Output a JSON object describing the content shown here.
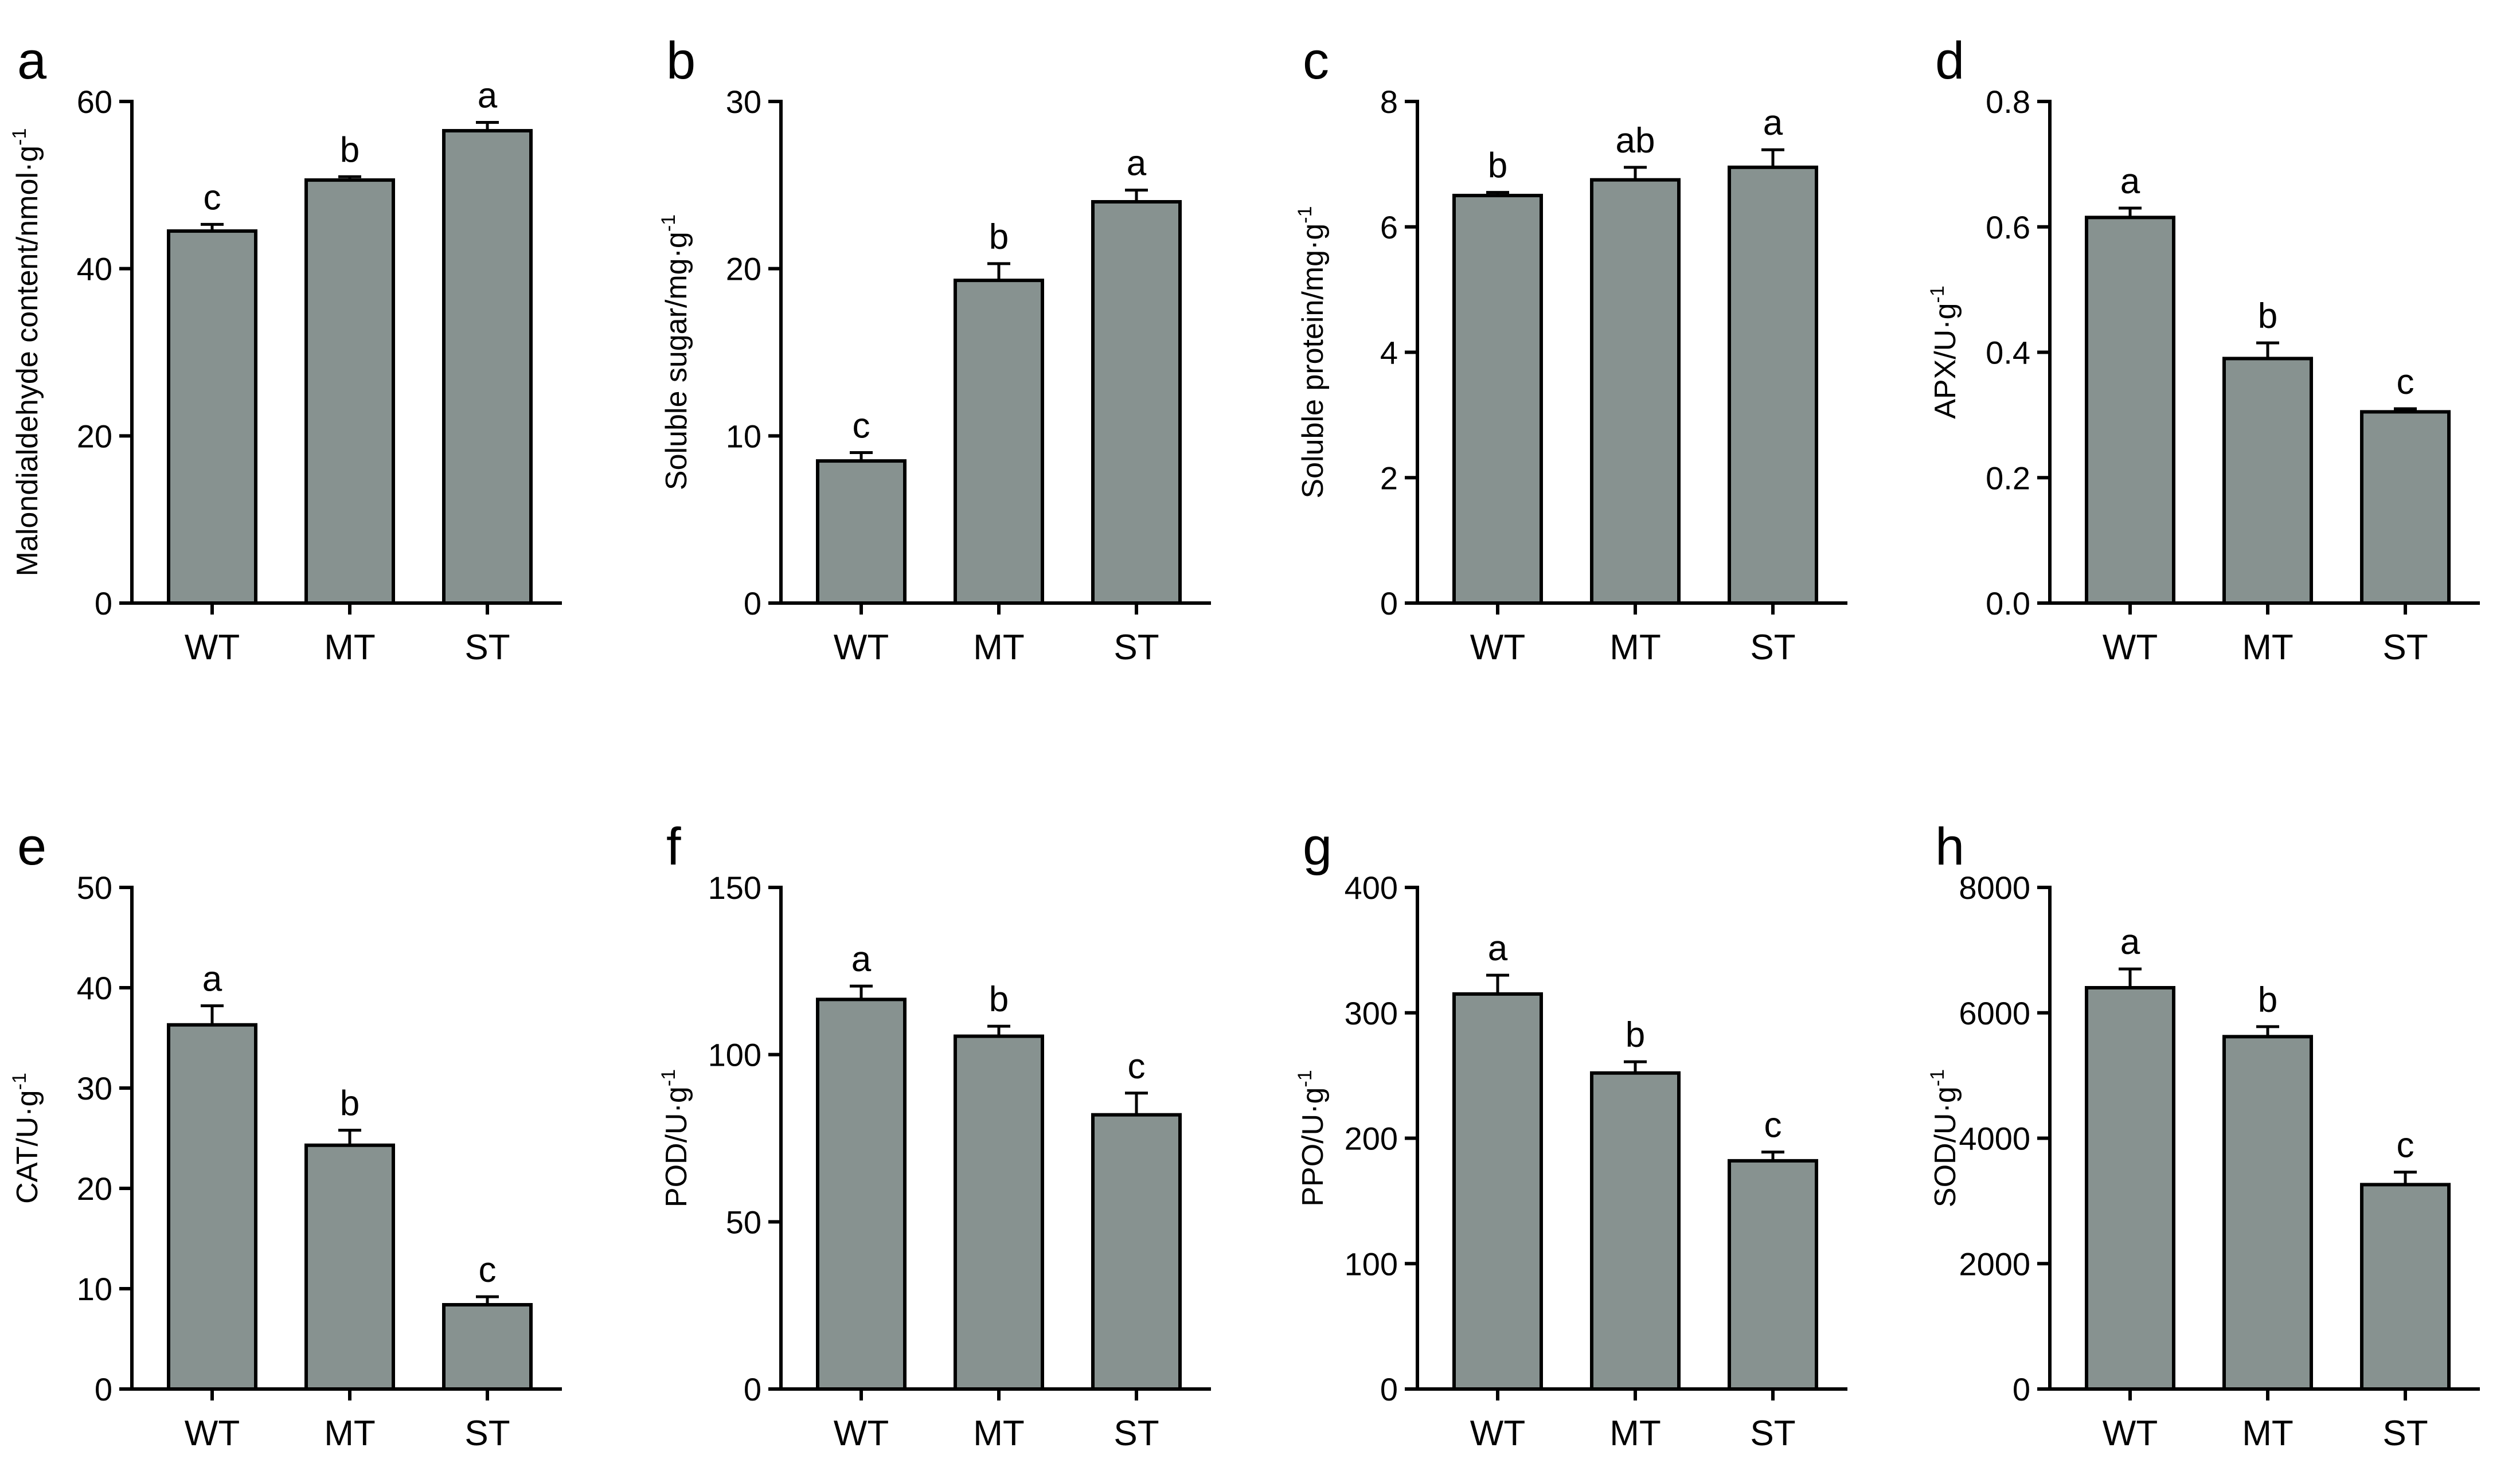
{
  "figure": {
    "colors": {
      "bar_fill": "#879290",
      "stroke": "#000000",
      "background": "#ffffff"
    }
  },
  "chart_data": [
    {
      "panel": "a",
      "type": "bar",
      "categories": [
        "WT",
        "MT",
        "ST"
      ],
      "values": [
        44.5,
        50.6,
        56.5
      ],
      "errors": [
        0.8,
        0.4,
        1.0
      ],
      "significance": [
        "c",
        "b",
        "a"
      ],
      "ylabel": "Malondialdehyde content/nmol·g",
      "ylabel_sup": "-1",
      "ylim": [
        0,
        60
      ],
      "yticks": [
        "0",
        "20",
        "40",
        "60"
      ]
    },
    {
      "panel": "b",
      "type": "bar",
      "categories": [
        "WT",
        "MT",
        "ST"
      ],
      "values": [
        8.5,
        19.3,
        24.0
      ],
      "errors": [
        0.5,
        1.0,
        0.7
      ],
      "significance": [
        "c",
        "b",
        "a"
      ],
      "ylabel": "Soluble sugar/mg·g",
      "ylabel_sup": "-1",
      "ylim": [
        0,
        30
      ],
      "yticks": [
        "0",
        "10",
        "20",
        "30"
      ]
    },
    {
      "panel": "c",
      "type": "bar",
      "categories": [
        "WT",
        "MT",
        "ST"
      ],
      "values": [
        6.5,
        6.75,
        6.95
      ],
      "errors": [
        0.05,
        0.2,
        0.28
      ],
      "significance": [
        "b",
        "ab",
        "a"
      ],
      "ylabel": "Soluble protein/mg·g",
      "ylabel_sup": "-1",
      "ylim": [
        0,
        8
      ],
      "yticks": [
        "0",
        "2",
        "4",
        "6",
        "8"
      ]
    },
    {
      "panel": "d",
      "type": "bar",
      "categories": [
        "WT",
        "MT",
        "ST"
      ],
      "values": [
        0.615,
        0.39,
        0.305
      ],
      "errors": [
        0.015,
        0.025,
        0.005
      ],
      "significance": [
        "a",
        "b",
        "c"
      ],
      "ylabel": "APX/U·g",
      "ylabel_sup": "-1",
      "ylim": [
        0,
        0.8
      ],
      "yticks": [
        "0.0",
        "0.2",
        "0.4",
        "0.6",
        "0.8"
      ]
    },
    {
      "panel": "e",
      "type": "bar",
      "categories": [
        "WT",
        "MT",
        "ST"
      ],
      "values": [
        36.3,
        24.3,
        8.4
      ],
      "errors": [
        1.9,
        1.5,
        0.8
      ],
      "significance": [
        "a",
        "b",
        "c"
      ],
      "ylabel": "CAT/U·g",
      "ylabel_sup": "-1",
      "ylim": [
        0,
        50
      ],
      "yticks": [
        "0",
        "10",
        "20",
        "30",
        "40",
        "50"
      ]
    },
    {
      "panel": "f",
      "type": "bar",
      "categories": [
        "WT",
        "MT",
        "ST"
      ],
      "values": [
        116.5,
        105.5,
        82.0
      ],
      "errors": [
        4.0,
        3.0,
        6.5
      ],
      "significance": [
        "a",
        "b",
        "c"
      ],
      "ylabel": "POD/U·g",
      "ylabel_sup": "-1",
      "ylim": [
        0,
        150
      ],
      "yticks": [
        "0",
        "50",
        "100",
        "150"
      ]
    },
    {
      "panel": "g",
      "type": "bar",
      "categories": [
        "WT",
        "MT",
        "ST"
      ],
      "values": [
        315,
        252,
        182
      ],
      "errors": [
        15,
        9,
        7
      ],
      "significance": [
        "a",
        "b",
        "c"
      ],
      "ylabel": "PPO/U·g",
      "ylabel_sup": "-1",
      "ylim": [
        0,
        400
      ],
      "yticks": [
        "0",
        "100",
        "200",
        "300",
        "400"
      ]
    },
    {
      "panel": "h",
      "type": "bar",
      "categories": [
        "WT",
        "MT",
        "ST"
      ],
      "values": [
        6400,
        5620,
        3260
      ],
      "errors": [
        300,
        160,
        200
      ],
      "significance": [
        "a",
        "b",
        "c"
      ],
      "ylabel": "SOD/U·g",
      "ylabel_sup": "-1",
      "ylim": [
        0,
        8000
      ],
      "yticks": [
        "0",
        "2000",
        "4000",
        "6000",
        "8000"
      ]
    }
  ]
}
